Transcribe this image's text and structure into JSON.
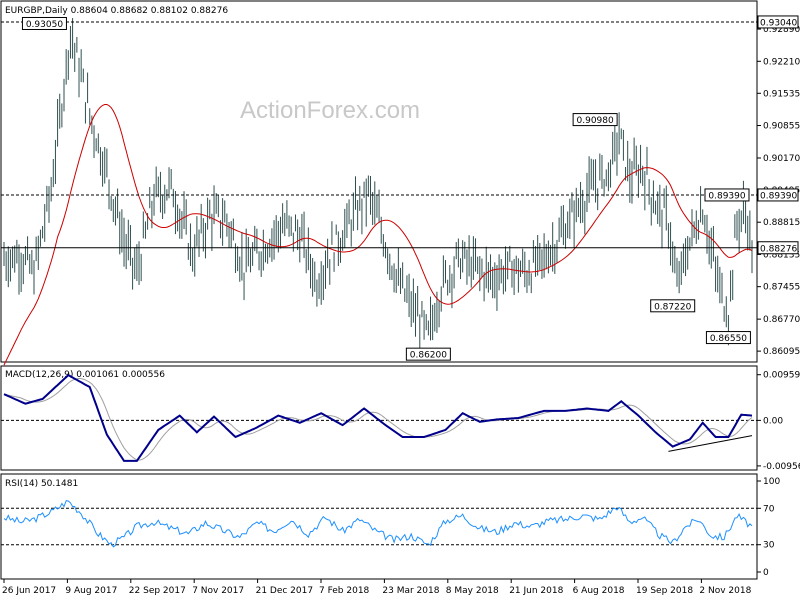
{
  "chart_data": [
    {
      "type": "ohlc",
      "title": "EURGBP,Daily  0.88604 0.88682 0.88102 0.88276",
      "watermark": "ActionForex.com",
      "ylim": [
        0.8595,
        0.9325
      ],
      "y_ticks": [
        "0.92890",
        "0.92210",
        "0.91535",
        "0.90855",
        "0.90170",
        "0.89495",
        "0.88815",
        "0.88135",
        "0.87455",
        "0.86770",
        "0.86095"
      ],
      "x_ticks": [
        "26 Jun 2017",
        "9 Aug 2017",
        "22 Sep 2017",
        "7 Nov 2017",
        "21 Dec 2017",
        "7 Feb 2018",
        "23 Mar 2018",
        "8 May 2018",
        "21 Jun 2018",
        "6 Aug 2018",
        "19 Sep 2018",
        "2 Nov 2018"
      ],
      "levels": [
        {
          "label": "0.93040",
          "value": 0.9304,
          "style": "dashed"
        },
        {
          "label": "0.89390",
          "value": 0.8939,
          "style": "dashed"
        },
        {
          "label": "0.88276",
          "value": 0.88276,
          "style": "solid"
        }
      ],
      "annotations": [
        {
          "text": "0.93050",
          "value": 0.9305,
          "date_index": 31
        },
        {
          "text": "0.90980",
          "value": 0.9098,
          "date_index": 287
        },
        {
          "text": "0.89390",
          "value": 0.8939,
          "date_index": 328
        },
        {
          "text": "0.87220",
          "value": 0.8722,
          "date_index": 312
        },
        {
          "text": "0.86200",
          "value": 0.862,
          "date_index": 198
        },
        {
          "text": "0.86550",
          "value": 0.8655,
          "date_index": 338
        }
      ],
      "moving_average": {
        "color": "#cc0000"
      },
      "colors": {
        "bars": "#2f4f4f",
        "ma": "#cc0000"
      },
      "series_keypoints": [
        {
          "i": 0,
          "v": 0.8805
        },
        {
          "i": 8,
          "v": 0.881
        },
        {
          "i": 14,
          "v": 0.8775
        },
        {
          "i": 22,
          "v": 0.895
        },
        {
          "i": 31,
          "v": 0.9285
        },
        {
          "i": 40,
          "v": 0.911
        },
        {
          "i": 48,
          "v": 0.8985
        },
        {
          "i": 56,
          "v": 0.884
        },
        {
          "i": 62,
          "v": 0.8775
        },
        {
          "i": 70,
          "v": 0.8935
        },
        {
          "i": 78,
          "v": 0.8955
        },
        {
          "i": 88,
          "v": 0.8815
        },
        {
          "i": 96,
          "v": 0.8895
        },
        {
          "i": 104,
          "v": 0.8885
        },
        {
          "i": 112,
          "v": 0.8785
        },
        {
          "i": 122,
          "v": 0.8835
        },
        {
          "i": 130,
          "v": 0.8875
        },
        {
          "i": 138,
          "v": 0.8855
        },
        {
          "i": 146,
          "v": 0.8755
        },
        {
          "i": 152,
          "v": 0.8815
        },
        {
          "i": 162,
          "v": 0.8885
        },
        {
          "i": 170,
          "v": 0.8945
        },
        {
          "i": 176,
          "v": 0.8865
        },
        {
          "i": 184,
          "v": 0.8755
        },
        {
          "i": 190,
          "v": 0.8705
        },
        {
          "i": 198,
          "v": 0.864
        },
        {
          "i": 204,
          "v": 0.8745
        },
        {
          "i": 212,
          "v": 0.8805
        },
        {
          "i": 220,
          "v": 0.8785
        },
        {
          "i": 228,
          "v": 0.8765
        },
        {
          "i": 236,
          "v": 0.8785
        },
        {
          "i": 244,
          "v": 0.8775
        },
        {
          "i": 252,
          "v": 0.8805
        },
        {
          "i": 260,
          "v": 0.8855
        },
        {
          "i": 268,
          "v": 0.8915
        },
        {
          "i": 276,
          "v": 0.8965
        },
        {
          "i": 282,
          "v": 0.8985
        },
        {
          "i": 287,
          "v": 0.9065
        },
        {
          "i": 292,
          "v": 0.8975
        },
        {
          "i": 298,
          "v": 0.8995
        },
        {
          "i": 304,
          "v": 0.892
        },
        {
          "i": 310,
          "v": 0.888
        },
        {
          "i": 314,
          "v": 0.8745
        },
        {
          "i": 320,
          "v": 0.884
        },
        {
          "i": 326,
          "v": 0.8915
        },
        {
          "i": 330,
          "v": 0.882
        },
        {
          "i": 334,
          "v": 0.874
        },
        {
          "i": 338,
          "v": 0.869
        },
        {
          "i": 342,
          "v": 0.888
        },
        {
          "i": 346,
          "v": 0.8905
        },
        {
          "i": 349,
          "v": 0.8828
        }
      ]
    },
    {
      "type": "line",
      "title": "MACD(12,26,9) 0.001061 0.000556",
      "ylim": [
        -0.01,
        0.011
      ],
      "y_ticks": [
        "0.009593",
        "0.00",
        "-0.009562"
      ],
      "colors": {
        "macd": "#00008b",
        "signal": "#a0a0a0"
      },
      "trendline": {
        "color": "#000000"
      },
      "series_keypoints": [
        {
          "i": 0,
          "v": 0.0055
        },
        {
          "i": 10,
          "v": 0.0035
        },
        {
          "i": 18,
          "v": 0.0045
        },
        {
          "i": 30,
          "v": 0.0095
        },
        {
          "i": 40,
          "v": 0.007
        },
        {
          "i": 48,
          "v": -0.003
        },
        {
          "i": 56,
          "v": -0.0085
        },
        {
          "i": 62,
          "v": -0.0085
        },
        {
          "i": 72,
          "v": -0.002
        },
        {
          "i": 82,
          "v": 0.001
        },
        {
          "i": 90,
          "v": -0.0025
        },
        {
          "i": 98,
          "v": 0.0008
        },
        {
          "i": 108,
          "v": -0.0035
        },
        {
          "i": 118,
          "v": -0.0015
        },
        {
          "i": 128,
          "v": 0.001
        },
        {
          "i": 138,
          "v": -0.0005
        },
        {
          "i": 148,
          "v": 0.0015
        },
        {
          "i": 158,
          "v": -0.001
        },
        {
          "i": 168,
          "v": 0.0025
        },
        {
          "i": 178,
          "v": -0.001
        },
        {
          "i": 186,
          "v": -0.0035
        },
        {
          "i": 196,
          "v": -0.0035
        },
        {
          "i": 206,
          "v": -0.002
        },
        {
          "i": 214,
          "v": 0.0015
        },
        {
          "i": 222,
          "v": -0.0003
        },
        {
          "i": 230,
          "v": 0.0002
        },
        {
          "i": 240,
          "v": 0.0005
        },
        {
          "i": 252,
          "v": 0.002
        },
        {
          "i": 262,
          "v": 0.002
        },
        {
          "i": 272,
          "v": 0.0025
        },
        {
          "i": 282,
          "v": 0.002
        },
        {
          "i": 288,
          "v": 0.004
        },
        {
          "i": 296,
          "v": 0.001
        },
        {
          "i": 304,
          "v": -0.0025
        },
        {
          "i": 312,
          "v": -0.0055
        },
        {
          "i": 320,
          "v": -0.004
        },
        {
          "i": 326,
          "v": -0.0005
        },
        {
          "i": 332,
          "v": -0.0035
        },
        {
          "i": 338,
          "v": -0.0035
        },
        {
          "i": 344,
          "v": 0.0012
        },
        {
          "i": 349,
          "v": 0.001
        }
      ]
    },
    {
      "type": "line",
      "title": "RSI(14) 50.1481",
      "ylim": [
        0,
        100
      ],
      "y_ticks": [
        "100",
        "70",
        "30",
        "0"
      ],
      "colors": {
        "rsi": "#1e90ff"
      },
      "series_keypoints": [
        {
          "i": 0,
          "v": 60
        },
        {
          "i": 8,
          "v": 55
        },
        {
          "i": 14,
          "v": 58
        },
        {
          "i": 22,
          "v": 66
        },
        {
          "i": 30,
          "v": 78
        },
        {
          "i": 36,
          "v": 65
        },
        {
          "i": 44,
          "v": 42
        },
        {
          "i": 50,
          "v": 30
        },
        {
          "i": 56,
          "v": 38
        },
        {
          "i": 62,
          "v": 50
        },
        {
          "i": 70,
          "v": 55
        },
        {
          "i": 78,
          "v": 48
        },
        {
          "i": 86,
          "v": 42
        },
        {
          "i": 94,
          "v": 54
        },
        {
          "i": 102,
          "v": 46
        },
        {
          "i": 110,
          "v": 38
        },
        {
          "i": 118,
          "v": 54
        },
        {
          "i": 126,
          "v": 45
        },
        {
          "i": 134,
          "v": 58
        },
        {
          "i": 142,
          "v": 42
        },
        {
          "i": 150,
          "v": 60
        },
        {
          "i": 158,
          "v": 45
        },
        {
          "i": 166,
          "v": 58
        },
        {
          "i": 174,
          "v": 44
        },
        {
          "i": 182,
          "v": 35
        },
        {
          "i": 190,
          "v": 40
        },
        {
          "i": 198,
          "v": 30
        },
        {
          "i": 206,
          "v": 56
        },
        {
          "i": 214,
          "v": 62
        },
        {
          "i": 222,
          "v": 48
        },
        {
          "i": 230,
          "v": 44
        },
        {
          "i": 238,
          "v": 54
        },
        {
          "i": 246,
          "v": 50
        },
        {
          "i": 254,
          "v": 56
        },
        {
          "i": 262,
          "v": 58
        },
        {
          "i": 270,
          "v": 62
        },
        {
          "i": 278,
          "v": 58
        },
        {
          "i": 286,
          "v": 72
        },
        {
          "i": 292,
          "v": 55
        },
        {
          "i": 298,
          "v": 60
        },
        {
          "i": 306,
          "v": 40
        },
        {
          "i": 312,
          "v": 32
        },
        {
          "i": 318,
          "v": 50
        },
        {
          "i": 324,
          "v": 58
        },
        {
          "i": 330,
          "v": 40
        },
        {
          "i": 336,
          "v": 38
        },
        {
          "i": 342,
          "v": 62
        },
        {
          "i": 346,
          "v": 55
        },
        {
          "i": 349,
          "v": 50
        }
      ]
    }
  ]
}
